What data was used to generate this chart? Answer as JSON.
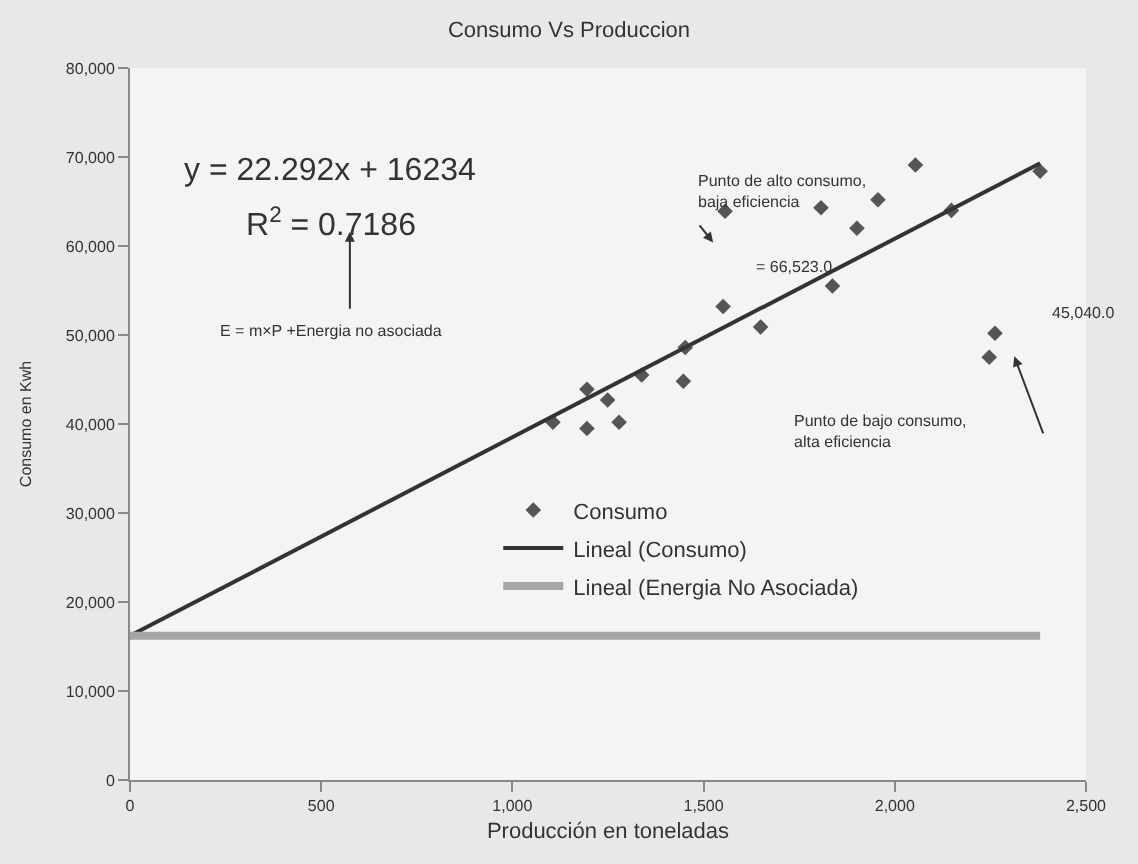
{
  "chart_data": {
    "type": "scatter",
    "title": "Consumo Vs Produccion",
    "xlabel": "Producción en toneladas",
    "ylabel": "Consumo en Kwh",
    "xlim": [
      0,
      2500
    ],
    "xticks": [
      0,
      {
        "value": 500,
        "label": "500"
      },
      {
        "value": 1000,
        "label": "1,000"
      },
      {
        "value": 1500,
        "label": "1,500"
      },
      {
        "value": 2000,
        "label": "2,000"
      },
      {
        "value": 2500,
        "label": "2,500"
      }
    ],
    "ylim": [
      0,
      80000
    ],
    "yticks": [
      0,
      {
        "value": 10000,
        "label": "10,000"
      },
      {
        "value": 20000,
        "label": "20,000"
      },
      {
        "value": 30000,
        "label": "30,000"
      },
      {
        "value": 40000,
        "label": "40,000"
      },
      {
        "value": 50000,
        "label": "50,000"
      },
      {
        "value": 60000,
        "label": "60,000"
      },
      {
        "value": 70000,
        "label": "70,000"
      },
      {
        "value": 80000,
        "label": "80,000"
      }
    ],
    "marker": "diamond",
    "grid": false,
    "legend": "bottom",
    "series": [
      {
        "name": "Consumo",
        "color": "#555555",
        "x": [
          1106,
          1195,
          1279,
          1195,
          1249,
          1338,
          1447,
          1452,
          1551,
          1649,
          1837,
          1901,
          1807,
          1956,
          2054,
          2148,
          2380,
          2262,
          1556,
          2247
        ],
        "values": [
          40200,
          39500,
          40200,
          43900,
          42700,
          45500,
          44800,
          48600,
          53200,
          50900,
          55500,
          62000,
          64300,
          65200,
          69100,
          64000,
          68400,
          50200,
          63900,
          47500
        ]
      },
      {
        "name": "Lineal (Consumo)",
        "type": "line",
        "marker": "none",
        "color": "#333333",
        "x": [
          0,
          2380
        ],
        "values": [
          16200,
          69300
        ]
      },
      {
        "name": "Lineal (Energia No Asociada)",
        "type": "line",
        "marker": "none",
        "color": "#a6a6a6",
        "x": [
          0,
          2380
        ],
        "values": [
          16200,
          16200
        ]
      }
    ],
    "annotations": [
      "y = 22.292x + 16234",
      "R$^{2}$ = 0.7186",
      "E = m×P +Energia no asociada",
      "Punto de alto consumo,\nbaja eficiencia",
      "= 66,523.0",
      "45,040.0",
      "Punto de bajo consumo,\nalta eficiencia"
    ]
  }
}
